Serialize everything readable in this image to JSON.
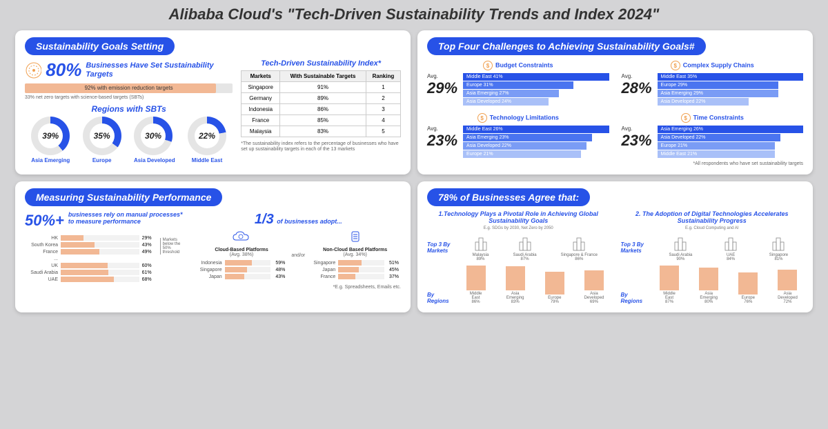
{
  "main_title": "Alibaba Cloud's \"Tech-Driven Sustainability Trends and Index 2024\"",
  "colors": {
    "primary_blue": "#2752e7",
    "bar_orange": "#f2b894",
    "bar_orange_dark": "#e89a5f",
    "lt_grey": "#e5e5e5",
    "blue_shades": [
      "#2752e7",
      "#4a74f0",
      "#7a9cf5",
      "#a9c0f8"
    ]
  },
  "goals": {
    "pill": "Sustainability Goals Setting",
    "big_pct": "80%",
    "big_text": "Businesses Have Set Sustainability Targets",
    "bar_label": "92% with emission reduction targets",
    "bar_pct": 92,
    "sbt_note": "33% net zero targets with science-based targets (SBTs)",
    "regions_title": "Regions with SBTs",
    "donuts": [
      {
        "label": "Asia Emerging",
        "pct": 39
      },
      {
        "label": "Europe",
        "pct": 35
      },
      {
        "label": "Asia Developed",
        "pct": 30
      },
      {
        "label": "Middle East",
        "pct": 22
      }
    ],
    "index_title": "Tech-Driven Sustainability Index*",
    "index_cols": [
      "Markets",
      "With Sustainable Targets",
      "Ranking"
    ],
    "index_rows": [
      [
        "Singapore",
        "91%",
        "1"
      ],
      [
        "Germany",
        "89%",
        "2"
      ],
      [
        "Indonesia",
        "86%",
        "3"
      ],
      [
        "France",
        "85%",
        "4"
      ],
      [
        "Malaysia",
        "83%",
        "5"
      ]
    ],
    "index_foot": "*The sustainability index refers to the percentage of businesses who have set up sustainability targets in each of the 13 markets"
  },
  "challenges": {
    "pill": "Top Four Challenges to Achieving Sustainability Goals#",
    "foot": "*All respondents who have set sustainability targets",
    "items": [
      {
        "title": "Budget Constraints",
        "avg": "29%",
        "regions": [
          {
            "name": "Middle East",
            "pct": 41
          },
          {
            "name": "Europe",
            "pct": 31
          },
          {
            "name": "Asia Emerging",
            "pct": 27
          },
          {
            "name": "Asia Developed",
            "pct": 24
          }
        ]
      },
      {
        "title": "Complex Supply Chains",
        "avg": "28%",
        "regions": [
          {
            "name": "Middle East",
            "pct": 35
          },
          {
            "name": "Europe",
            "pct": 29
          },
          {
            "name": "Asia Emerging",
            "pct": 29
          },
          {
            "name": "Asia Developed",
            "pct": 22
          }
        ]
      },
      {
        "title": "Technology Limitations",
        "avg": "23%",
        "regions": [
          {
            "name": "Middle East",
            "pct": 26
          },
          {
            "name": "Asia Emerging",
            "pct": 23
          },
          {
            "name": "Asia Developed",
            "pct": 22
          },
          {
            "name": "Europe",
            "pct": 21
          }
        ]
      },
      {
        "title": "Time Constraints",
        "avg": "23%",
        "regions": [
          {
            "name": "Asia Emerging",
            "pct": 26
          },
          {
            "name": "Asia Developed",
            "pct": 22
          },
          {
            "name": "Europe",
            "pct": 21
          },
          {
            "name": "Middle East",
            "pct": 21
          }
        ]
      }
    ]
  },
  "measuring": {
    "pill": "Measuring Sustainability Performance",
    "big": "50%+",
    "big_text": "businesses rely on manual processes* to measure performance",
    "threshold_note": "Markets below the 50% threshold",
    "bars": [
      {
        "label": "HK",
        "pct": 29
      },
      {
        "label": "South Korea",
        "pct": 43
      },
      {
        "label": "France",
        "pct": 49
      },
      {
        "label": "...",
        "pct": 0
      },
      {
        "label": "UK",
        "pct": 60
      },
      {
        "label": "Saudi Arabia",
        "pct": 61
      },
      {
        "label": "UAE",
        "pct": 68
      }
    ],
    "third": "1/3",
    "third_text": "of businesses adopt...",
    "andor": "and/or",
    "cloud": {
      "title": "Cloud-Based Platforms",
      "avg": "(Avg. 38%)",
      "bars": [
        {
          "label": "Indonesia",
          "pct": 59
        },
        {
          "label": "Singapore",
          "pct": 48
        },
        {
          "label": "Japan",
          "pct": 43
        }
      ]
    },
    "noncloud": {
      "title": "Non-Cloud Based Platforms",
      "avg": "(Avg. 34%)",
      "bars": [
        {
          "label": "Singapore",
          "pct": 51
        },
        {
          "label": "Japan",
          "pct": 45
        },
        {
          "label": "France",
          "pct": 37
        }
      ]
    },
    "foot": "*E.g. Spreadsheets, Emails etc."
  },
  "agree": {
    "pill": "78% of Businesses Agree that:",
    "cols": [
      {
        "title": "1.Technology Plays a Pivotal Role in Achieving Global Sustainability Goals",
        "sub": "E.g. SDGs by 2030, Net Zero by 2050",
        "top3_label": "Top 3 By Markets",
        "markets": [
          {
            "name": "Malaysia",
            "pct": "89%"
          },
          {
            "name": "Saudi Arabia",
            "pct": "87%"
          },
          {
            "name": "Singapore & France",
            "pct": "86%"
          }
        ],
        "regions_label": "By Regions",
        "regions": [
          {
            "name": "Middle East",
            "pct": 86
          },
          {
            "name": "Asia Emerging",
            "pct": 83
          },
          {
            "name": "Europe",
            "pct": 79
          },
          {
            "name": "Asia Developed",
            "pct": 69
          }
        ]
      },
      {
        "title": "2. The Adoption of Digital Technologies Accelerates Sustainability Progress",
        "sub": "E.g. Cloud Computing and AI",
        "top3_label": "Top 3 By Markets",
        "markets": [
          {
            "name": "Saudi Arabia",
            "pct": "90%"
          },
          {
            "name": "UAE",
            "pct": "84%"
          },
          {
            "name": "Singapore",
            "pct": "81%"
          }
        ],
        "regions_label": "By Regions",
        "regions": [
          {
            "name": "Middle East",
            "pct": 87
          },
          {
            "name": "Asia Emerging",
            "pct": 80
          },
          {
            "name": "Europe",
            "pct": 76
          },
          {
            "name": "Asia Developed",
            "pct": 72
          }
        ]
      }
    ]
  }
}
